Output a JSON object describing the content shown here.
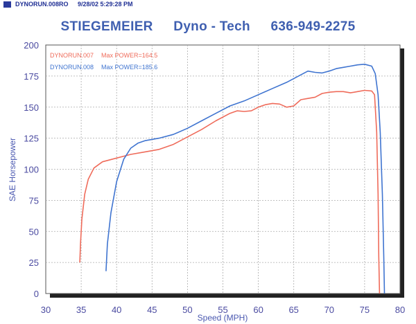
{
  "header": {
    "file": "DYNORUN.008RO",
    "timestamp": "9/28/02 5:29:28 PM"
  },
  "title_parts": [
    "STIEGEMEIER",
    "Dyno - Tech",
    "636-949-2275"
  ],
  "colors": {
    "run1": "#ef6b5a",
    "run2": "#3f74d0",
    "axis_text": "#4a4aa0",
    "grid": "#aaaaaa",
    "title": "#3f5fb0"
  },
  "chart_data": {
    "type": "line",
    "xlabel": "Speed (MPH)",
    "ylabel": "SAE Horsepower",
    "xlim": [
      30,
      80
    ],
    "ylim": [
      0,
      200
    ],
    "xticks": [
      30,
      35,
      40,
      45,
      50,
      55,
      60,
      65,
      70,
      75,
      80
    ],
    "yticks": [
      0,
      25,
      50,
      75,
      100,
      125,
      150,
      175,
      200
    ],
    "grid": true,
    "legend_position": "top-left",
    "series": [
      {
        "name": "DYNORUN.007",
        "label": "Max POWER=164.5",
        "color": "#ef6b5a",
        "points": [
          [
            34.8,
            25
          ],
          [
            34.9,
            40
          ],
          [
            35.1,
            60
          ],
          [
            35.5,
            80
          ],
          [
            36.0,
            92
          ],
          [
            36.8,
            101
          ],
          [
            38.0,
            106
          ],
          [
            40.0,
            109
          ],
          [
            42.0,
            112
          ],
          [
            44.0,
            114
          ],
          [
            46.0,
            116
          ],
          [
            48.0,
            120
          ],
          [
            50.0,
            126
          ],
          [
            52.0,
            132
          ],
          [
            54.0,
            139
          ],
          [
            56.0,
            145
          ],
          [
            57.0,
            147
          ],
          [
            58.0,
            146.5
          ],
          [
            59.0,
            147
          ],
          [
            60.0,
            150
          ],
          [
            61.0,
            152
          ],
          [
            62.0,
            153
          ],
          [
            63.0,
            152.5
          ],
          [
            64.0,
            150
          ],
          [
            65.0,
            151
          ],
          [
            66.0,
            156
          ],
          [
            67.0,
            157
          ],
          [
            68.0,
            158
          ],
          [
            69.0,
            161
          ],
          [
            70.0,
            162
          ],
          [
            71.0,
            162.5
          ],
          [
            72.0,
            162.5
          ],
          [
            73.0,
            161.5
          ],
          [
            74.0,
            162.5
          ],
          [
            75.0,
            163.5
          ],
          [
            76.0,
            163
          ],
          [
            76.4,
            160
          ],
          [
            76.7,
            130
          ],
          [
            76.9,
            80
          ],
          [
            77.0,
            30
          ],
          [
            77.1,
            0
          ]
        ]
      },
      {
        "name": "DYNORUN.008",
        "label": "Max POWER=185.6",
        "color": "#3f74d0",
        "points": [
          [
            38.5,
            18
          ],
          [
            38.7,
            40
          ],
          [
            39.2,
            65
          ],
          [
            40.0,
            90
          ],
          [
            41.0,
            108
          ],
          [
            42.0,
            117
          ],
          [
            43.0,
            121
          ],
          [
            44.0,
            123
          ],
          [
            46.0,
            125
          ],
          [
            48.0,
            128
          ],
          [
            50.0,
            133
          ],
          [
            52.0,
            139
          ],
          [
            54.0,
            145
          ],
          [
            56.0,
            151
          ],
          [
            58.0,
            155
          ],
          [
            60.0,
            160
          ],
          [
            62.0,
            165
          ],
          [
            64.0,
            170
          ],
          [
            66.0,
            176
          ],
          [
            67.0,
            179
          ],
          [
            68.0,
            178
          ],
          [
            69.0,
            177.5
          ],
          [
            70.0,
            179
          ],
          [
            71.0,
            181
          ],
          [
            72.0,
            182
          ],
          [
            73.0,
            183
          ],
          [
            74.0,
            184
          ],
          [
            75.0,
            184.5
          ],
          [
            76.0,
            183
          ],
          [
            76.5,
            177
          ],
          [
            76.9,
            160
          ],
          [
            77.2,
            130
          ],
          [
            77.5,
            80
          ],
          [
            77.7,
            30
          ],
          [
            77.8,
            0
          ]
        ]
      }
    ]
  }
}
